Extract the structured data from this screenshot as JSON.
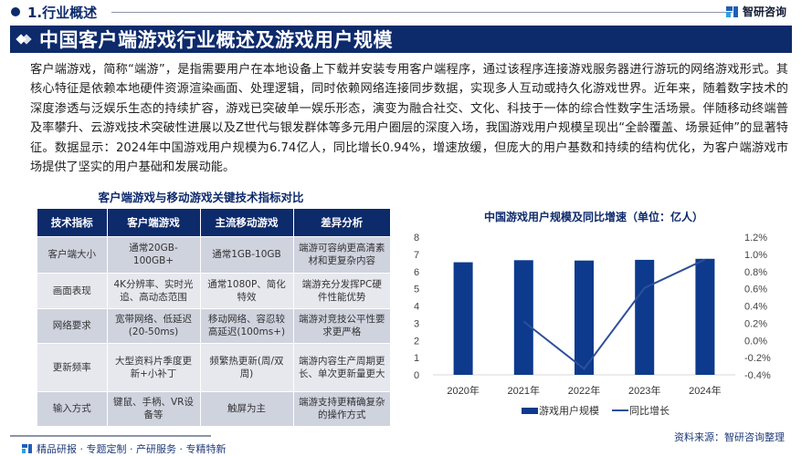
{
  "section": {
    "title": "1.行业概述"
  },
  "brand": {
    "name": "智研咨询",
    "logo_icon": "zhiyan-logo-icon"
  },
  "banner": {
    "title": "中国客户端游戏行业概述及游戏用户规模",
    "icon": "double-diamond-icon"
  },
  "intro": {
    "text": "客户端游戏，简称“端游”，是指需要用户在本地设备上下载并安装专用客户端程序，通过该程序连接游戏服务器进行游玩的网络游戏形式。其核心特征是依赖本地硬件资源渲染画面、处理逻辑，同时依赖网络连接同步数据，实现多人互动或持久化游戏世界。近年来，随着数字技术的深度渗透与泛娱乐生态的持续扩容，游戏已突破单一娱乐形态，演变为融合社交、文化、科技于一体的综合性数字生活场景。伴随移动终端普及率攀升、云游戏技术突破性进展以及Z世代与银发群体等多元用户圈层的深度入场，我国游戏用户规模呈现出“全龄覆盖、场景延伸”的显著特征。数据显示：2024年中国游戏用户规模为6.74亿人，同比增长0.94%，增速放缓，但庞大的用户基数和持续的结构优化，为客户端游戏市场提供了坚实的用户基础和发展动能。"
  },
  "table": {
    "title": "客户端游戏与移动游戏关键技术指标对比",
    "headers": [
      "技术指标",
      "客户端游戏",
      "主流移动游戏",
      "差异分析"
    ],
    "rows": [
      [
        "客户端大小",
        "通常20GB-100GB+",
        "通常1GB-10GB",
        "端游可容纳更高清素材和更复杂内容"
      ],
      [
        "画面表现",
        "4K分辨率、实时光追、高动态范围",
        "通常1080P、简化特效",
        "端游充分发挥PC硬件性能优势"
      ],
      [
        "网络要求",
        "宽带网络、低延迟(20-50ms)",
        "移动网络、容忍较高延迟(100ms+)",
        "端游对竞技公平性要求更严格"
      ],
      [
        "更新频率",
        "大型资料片季度更新+小补丁",
        "频繁热更新(周/双周)",
        "端游内容生产周期更长、单次更新量更大"
      ],
      [
        "输入方式",
        "键鼠、手柄、VR设备等",
        "触屏为主",
        "端游支持更精确复杂的操作方式"
      ]
    ]
  },
  "chart_data": {
    "type": "bar",
    "title": "中国游戏用户规模及同比增速（单位：亿人）",
    "categories": [
      "2020年",
      "2021年",
      "2022年",
      "2023年",
      "2024年"
    ],
    "series": [
      {
        "name": "游戏用户规模",
        "type": "bar",
        "axis": "left",
        "color": "#0d3a8c",
        "values": [
          6.54,
          6.66,
          6.64,
          6.68,
          6.74
        ]
      },
      {
        "name": "同比增长",
        "type": "line",
        "axis": "right",
        "color": "#2e4f9a",
        "values": [
          null,
          0.22,
          -0.33,
          0.61,
          0.94
        ]
      }
    ],
    "left_axis": {
      "ylim": [
        0,
        8
      ],
      "ticks": [
        "0",
        "1",
        "2",
        "3",
        "4",
        "5",
        "6",
        "7",
        "8"
      ]
    },
    "right_axis": {
      "ylim": [
        -0.4,
        1.2
      ],
      "unit": "%",
      "ticks": [
        "-0.4%",
        "-0.2%",
        "0.0%",
        "0.2%",
        "0.4%",
        "0.6%",
        "0.8%",
        "1.0%",
        "1.2%"
      ]
    },
    "xlabel": "",
    "ylabel": "",
    "grid": false,
    "legend_position": "bottom"
  },
  "source": {
    "text": "资料来源：智研咨询整理"
  },
  "footer": {
    "text": "精品研报 · 专题定制 · 产研服务 · 专精特新"
  }
}
